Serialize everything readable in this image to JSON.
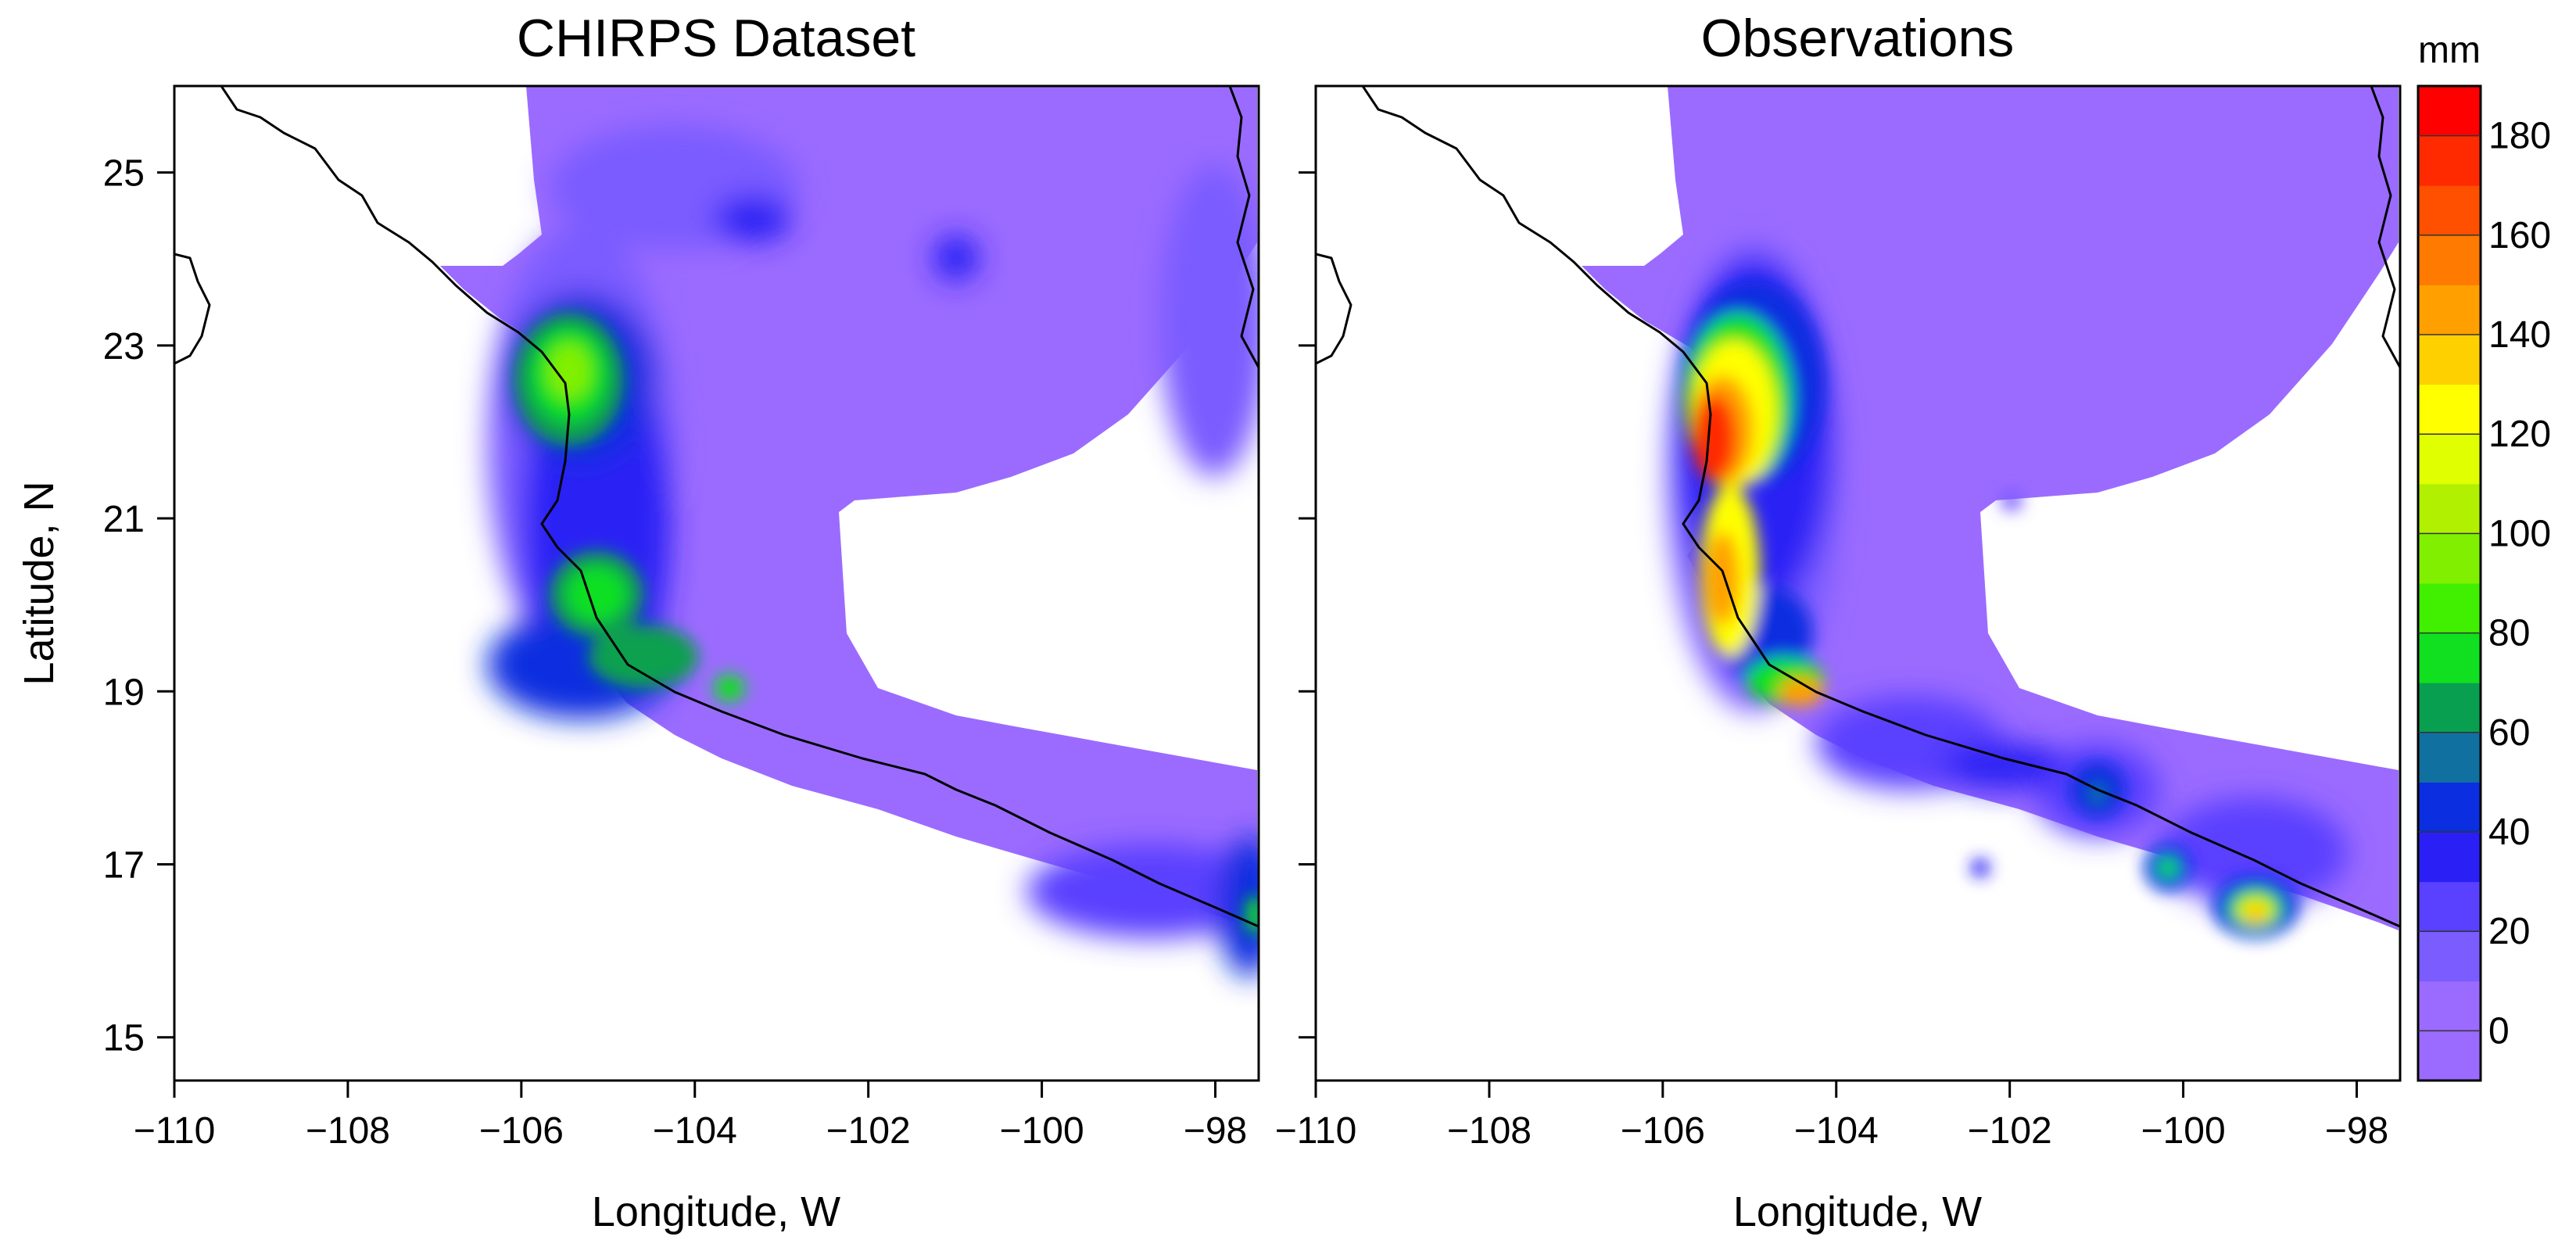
{
  "panels": [
    {
      "id": "chirps",
      "title": "CHIRPS Dataset",
      "show_ylabel": true
    },
    {
      "id": "observations",
      "title": "Observations",
      "show_ylabel": false
    }
  ],
  "axes": {
    "xlabel": "Longitude, W",
    "ylabel": "Latitude, N",
    "x_ticks": [
      "−110",
      "−108",
      "−106",
      "−104",
      "−102",
      "−100",
      "−98"
    ],
    "x_values": [
      -110,
      -108,
      -106,
      -104,
      -102,
      -100,
      -98
    ],
    "y_ticks": [
      "25",
      "23",
      "21",
      "19",
      "17",
      "15"
    ],
    "y_values": [
      25,
      23,
      21,
      19,
      17,
      15
    ],
    "xlim": [
      -110,
      -97.5
    ],
    "ylim": [
      14.5,
      26
    ]
  },
  "colorbar": {
    "unit": "mm",
    "tick_labels": [
      "0",
      "20",
      "40",
      "60",
      "80",
      "100",
      "120",
      "140",
      "160",
      "180"
    ],
    "tick_values": [
      0,
      20,
      40,
      60,
      80,
      100,
      120,
      140,
      160,
      180
    ],
    "range": [
      -10,
      190
    ],
    "levels": [
      {
        "from": -10,
        "to": 0,
        "color": "#9b6bff"
      },
      {
        "from": 0,
        "to": 10,
        "color": "#9b6bff"
      },
      {
        "from": 10,
        "to": 20,
        "color": "#7a5cff"
      },
      {
        "from": 20,
        "to": 30,
        "color": "#5a40ff"
      },
      {
        "from": 30,
        "to": 40,
        "color": "#2a20f5"
      },
      {
        "from": 40,
        "to": 50,
        "color": "#0a2ee0"
      },
      {
        "from": 50,
        "to": 60,
        "color": "#1070a0"
      },
      {
        "from": 60,
        "to": 70,
        "color": "#08a050"
      },
      {
        "from": 70,
        "to": 80,
        "color": "#10e020"
      },
      {
        "from": 80,
        "to": 90,
        "color": "#40f000"
      },
      {
        "from": 90,
        "to": 100,
        "color": "#80f000"
      },
      {
        "from": 100,
        "to": 110,
        "color": "#b0f000"
      },
      {
        "from": 110,
        "to": 120,
        "color": "#e0ff00"
      },
      {
        "from": 120,
        "to": 130,
        "color": "#ffff00"
      },
      {
        "from": 130,
        "to": 140,
        "color": "#ffd000"
      },
      {
        "from": 140,
        "to": 150,
        "color": "#ffa000"
      },
      {
        "from": 150,
        "to": 160,
        "color": "#ff7a00"
      },
      {
        "from": 160,
        "to": 170,
        "color": "#ff5000"
      },
      {
        "from": 170,
        "to": 180,
        "color": "#ff2a00"
      },
      {
        "from": 180,
        "to": 190,
        "color": "#ff0000"
      }
    ]
  },
  "colors": {
    "base": "#9b6bff",
    "light": "#7a5cff",
    "mid": "#5a40ff",
    "blue": "#2a20f5",
    "deep": "#0a2ee0",
    "teal": "#1070a0",
    "darkgreen": "#08a050",
    "green": "#10e020",
    "yellowgreen": "#b0f000",
    "yellow": "#ffff00",
    "orange": "#ffa000",
    "red": "#ff2a00"
  }
}
